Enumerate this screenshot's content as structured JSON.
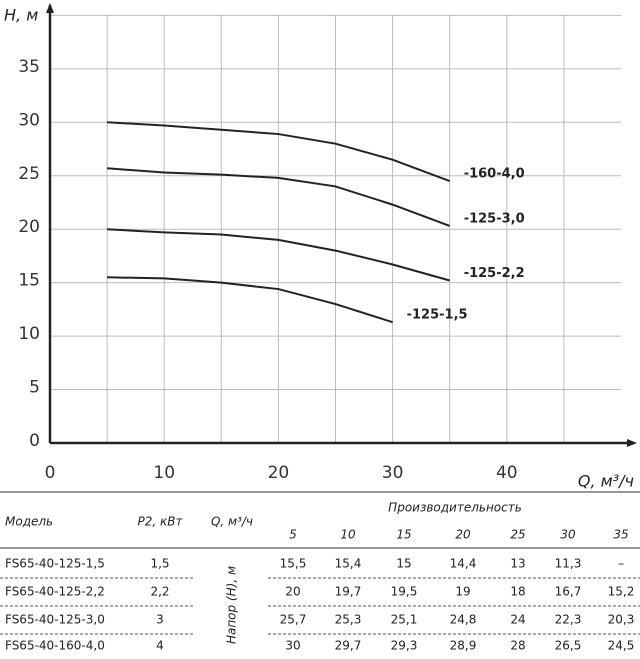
{
  "chart_data": {
    "type": "line",
    "ylabel": "H, м",
    "xlabel": "Q, м³/ч",
    "x": [
      5,
      10,
      15,
      20,
      25,
      30,
      35
    ],
    "series": [
      {
        "name": "-160-4,0",
        "color": "#222222",
        "values": [
          30,
          29.7,
          29.3,
          28.9,
          28,
          26.5,
          24.5
        ]
      },
      {
        "name": "-125-3,0",
        "color": "#222222",
        "values": [
          25.7,
          25.3,
          25.1,
          24.8,
          24,
          22.3,
          20.3
        ]
      },
      {
        "name": "-125-2,2",
        "color": "#222222",
        "values": [
          20,
          19.7,
          19.5,
          19,
          18,
          16.7,
          15.2
        ]
      },
      {
        "name": "-125-1,5",
        "color": "#222222",
        "values": [
          15.5,
          15.4,
          15,
          14.4,
          13,
          11.3,
          null
        ]
      }
    ],
    "xlim": [
      0,
      50
    ],
    "ylim": [
      0,
      40
    ],
    "xticks": [
      0,
      10,
      20,
      30,
      40
    ],
    "xminor": [
      5,
      15,
      25,
      35,
      45
    ],
    "yticks": [
      0,
      5,
      10,
      15,
      20,
      25,
      30,
      35
    ],
    "grid": true
  },
  "table": {
    "columns": [
      "Модель",
      "P2, кВт",
      "Q, м³/ч"
    ],
    "group_header": "Производительность",
    "flows": [
      "5",
      "10",
      "15",
      "20",
      "25",
      "30",
      "35"
    ],
    "row_header": "Напор (H), м",
    "rows": [
      {
        "model": "FS65-40-125-1,5",
        "power": "1,5",
        "values": [
          "15,5",
          "15,4",
          "15",
          "14,4",
          "13",
          "11,3",
          "–"
        ]
      },
      {
        "model": "FS65-40-125-2,2",
        "power": "2,2",
        "values": [
          "20",
          "19,7",
          "19,5",
          "19",
          "18",
          "16,7",
          "15,2"
        ]
      },
      {
        "model": "FS65-40-125-3,0",
        "power": "3",
        "values": [
          "25,7",
          "25,3",
          "25,1",
          "24,8",
          "24",
          "22,3",
          "20,3"
        ]
      },
      {
        "model": "FS65-40-160-4,0",
        "power": "4",
        "values": [
          "30",
          "29,7",
          "29,3",
          "28,9",
          "28",
          "26,5",
          "24,5"
        ]
      }
    ]
  }
}
